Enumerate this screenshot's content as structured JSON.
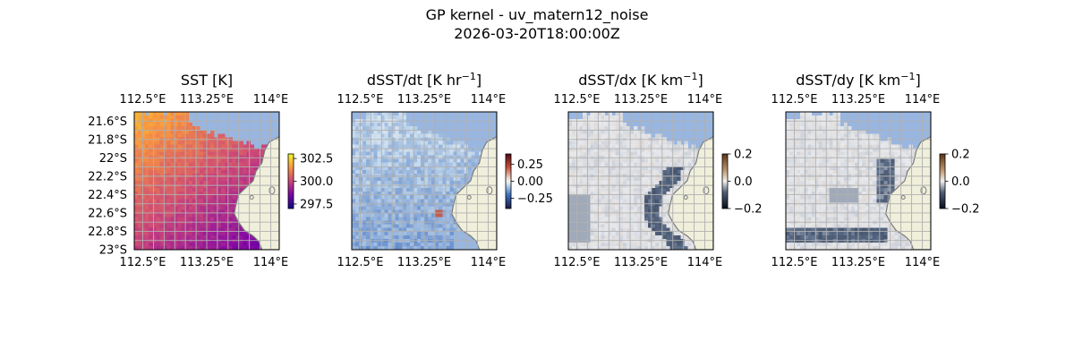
{
  "figure": {
    "title": "GP kernel - uv_matern12_noise",
    "subtitle": "2026-03-20T18:00:00Z"
  },
  "colors": {
    "ocean_missing": "#98b6e0",
    "land": "#efefdb",
    "coast": "#7a7a7a",
    "grid": "#b0b0b0"
  },
  "chart_data": [
    {
      "type": "heatmap",
      "title": "SST [K]",
      "title_unit_exp": "",
      "xlim": [
        112.4,
        114.1
      ],
      "ylim": [
        -23.0,
        -21.5
      ],
      "x_ticks": [
        112.5,
        113.25,
        114.0
      ],
      "x_tick_labels": [
        "112.5°E",
        "113.25°E",
        "114°E"
      ],
      "y_ticks": [
        -21.6,
        -21.8,
        -22.0,
        -22.2,
        -22.4,
        -22.6,
        -22.8,
        -23.0
      ],
      "y_tick_labels": [
        "21.6°S",
        "21.8°S",
        "22°S",
        "22.2°S",
        "22.4°S",
        "22.6°S",
        "22.8°S",
        "23°S"
      ],
      "show_y_labels": true,
      "grid": true,
      "colorbar": {
        "cmap": "plasma",
        "range": [
          297.0,
          303.0
        ],
        "ticks": [
          302.5,
          300.0,
          297.5
        ],
        "tick_labels": [
          "302.5",
          "300.0",
          "297.5"
        ]
      }
    },
    {
      "type": "heatmap",
      "title": "dSST/dt [K hr",
      "title_unit_exp": "−1",
      "title_suffix": "]",
      "xlim": [
        112.4,
        114.1
      ],
      "ylim": [
        -23.0,
        -21.5
      ],
      "x_ticks": [
        112.5,
        113.25,
        114.0
      ],
      "x_tick_labels": [
        "112.5°E",
        "113.25°E",
        "114°E"
      ],
      "show_y_labels": false,
      "grid": true,
      "colorbar": {
        "cmap": "balance",
        "range": [
          -0.4,
          0.4
        ],
        "ticks": [
          0.25,
          0.0,
          -0.25
        ],
        "tick_labels": [
          "0.25",
          "0.00",
          "−0.25"
        ]
      }
    },
    {
      "type": "heatmap",
      "title": "dSST/dx [K km",
      "title_unit_exp": "−1",
      "title_suffix": "]",
      "xlim": [
        112.4,
        114.1
      ],
      "ylim": [
        -23.0,
        -21.5
      ],
      "x_ticks": [
        112.5,
        113.25,
        114.0
      ],
      "x_tick_labels": [
        "112.5°E",
        "113.25°E",
        "114°E"
      ],
      "show_y_labels": false,
      "grid": true,
      "colorbar": {
        "cmap": "diff",
        "range": [
          -0.2,
          0.2
        ],
        "ticks": [
          0.2,
          0.0,
          -0.2
        ],
        "tick_labels": [
          "0.2",
          "0.0",
          "−0.2"
        ]
      }
    },
    {
      "type": "heatmap",
      "title": "dSST/dy [K km",
      "title_unit_exp": "−1",
      "title_suffix": "]",
      "xlim": [
        112.4,
        114.1
      ],
      "ylim": [
        -23.0,
        -21.5
      ],
      "x_ticks": [
        112.5,
        113.25,
        114.0
      ],
      "x_tick_labels": [
        "112.5°E",
        "113.25°E",
        "114°E"
      ],
      "show_y_labels": false,
      "grid": true,
      "colorbar": {
        "cmap": "diff",
        "range": [
          -0.2,
          0.2
        ],
        "ticks": [
          0.2,
          0.0,
          -0.2
        ],
        "tick_labels": [
          "0.2",
          "0.0",
          "−0.2"
        ]
      }
    }
  ]
}
